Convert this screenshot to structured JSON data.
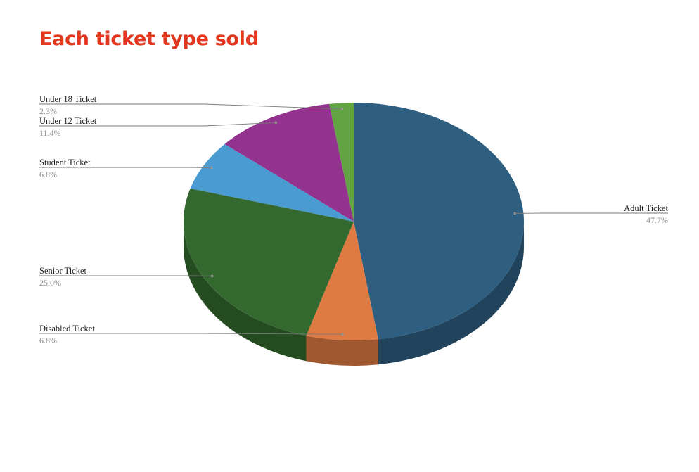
{
  "title": "Each ticket type sold",
  "title_color": "#e2361f",
  "chart_data": {
    "type": "pie",
    "style": "3d",
    "title": "Each ticket type sold",
    "slices": [
      {
        "label": "Adult Ticket",
        "value": 47.7,
        "display": "47.7%",
        "color": "#2e5f80",
        "side": "right"
      },
      {
        "label": "Disabled Ticket",
        "value": 6.8,
        "display": "6.8%",
        "color": "#de7a42",
        "side": "left"
      },
      {
        "label": "Senior Ticket",
        "value": 25.0,
        "display": "25.0%",
        "color": "#33692e",
        "side": "left"
      },
      {
        "label": "Student Ticket",
        "value": 6.8,
        "display": "6.8%",
        "color": "#4a9bd2",
        "side": "left"
      },
      {
        "label": "Under 12 Ticket",
        "value": 11.4,
        "display": "11.4%",
        "color": "#93338f",
        "side": "left"
      },
      {
        "label": "Under 18 Ticket",
        "value": 2.3,
        "display": "2.3%",
        "color": "#62a443",
        "side": "left"
      }
    ]
  }
}
